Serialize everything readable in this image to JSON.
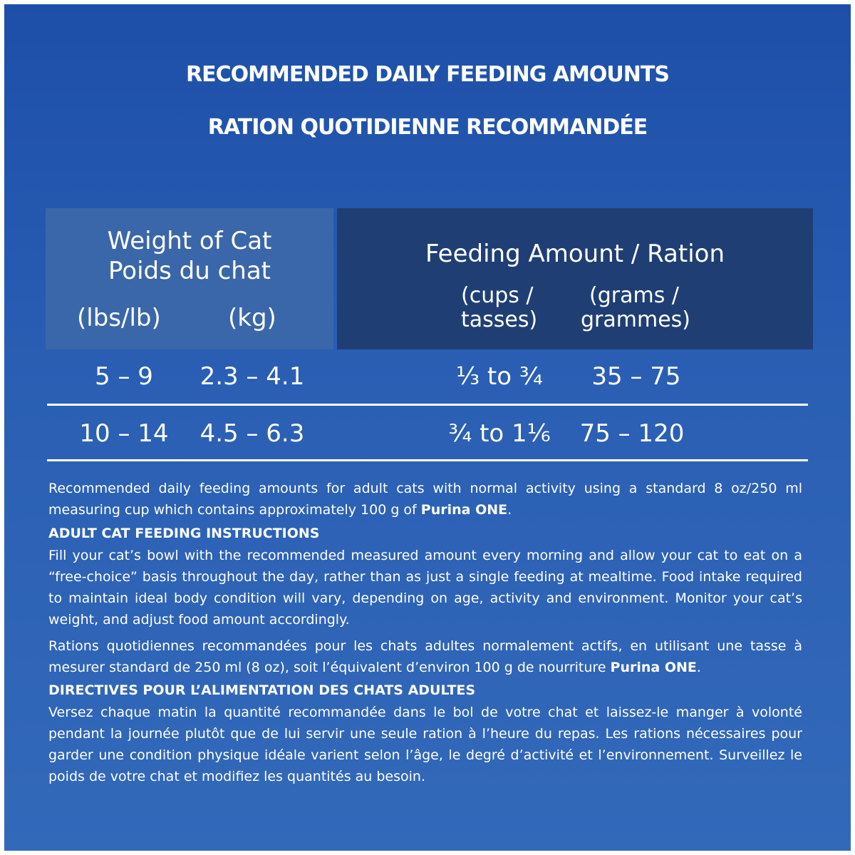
{
  "title": {
    "line1": "RECOMMENDED DAILY FEEDING AMOUNTS",
    "line2": "RATION QUOTIDIENNE RECOMMANDÉE"
  },
  "table": {
    "weight_header_en": "Weight of Cat",
    "weight_header_fr": "Poids du chat",
    "weight_unit_lbs": "(lbs/lb)",
    "weight_unit_kg": "(kg)",
    "feeding_header": "Feeding Amount / Ration",
    "feeding_unit_cups_1": "(cups /",
    "feeding_unit_cups_2": "tasses)",
    "feeding_unit_grams_1": "(grams /",
    "feeding_unit_grams_2": "grammes)",
    "rows": [
      {
        "lbs": "5 – 9",
        "kg": "2.3 – 4.1",
        "cups": "⅓ to ¾",
        "grams": "35 – 75"
      },
      {
        "lbs": "10 – 14",
        "kg": "4.5 – 6.3",
        "cups": "¾ to 1⅙",
        "grams": "75 – 120"
      }
    ]
  },
  "notes": {
    "en_intro": "Recommended daily feeding amounts for adult cats with normal activity using a standard 8 oz/250 ml measuring cup which contains approximately 100 g of ",
    "brand": "Purina ONE",
    "en_intro_end": ".",
    "en_heading": "ADULT CAT FEEDING INSTRUCTIONS",
    "en_body": "Fill your cat’s bowl with the recommended measured amount every morning and allow your cat to eat on a “free-choice” basis throughout the day, rather than as just a single feeding at mealtime. Food intake required to maintain ideal body condition will vary, depending on age, activity and environment. Monitor your cat’s weight, and adjust food amount accordingly.",
    "fr_intro": "Rations quotidiennes recommandées pour les chats adultes normalement actifs, en utilisant une tasse à mesurer standard de 250 ml (8 oz), soit l’équivalent d’environ 100 g de nourriture ",
    "fr_intro_end": ".",
    "fr_heading": "DIRECTIVES POUR L’ALIMENTATION DES CHATS ADULTES",
    "fr_body": "Versez chaque matin la quantité recommandée dans le bol de votre chat et laissez-le manger à volonté pendant la journée plutôt que de lui servir une seule ration à l’heure du repas. Les rations nécessaires pour garder une condition physique idéale varient selon l’âge, le degré d’activité et l’environnement. Surveillez le poids de votre chat et modifiez les quantités au besoin."
  },
  "colors": {
    "background": "#2a5fb4",
    "weight_header_bg": "#3a67a9",
    "feeding_header_bg": "#1f3f74",
    "text": "#ffffff"
  }
}
